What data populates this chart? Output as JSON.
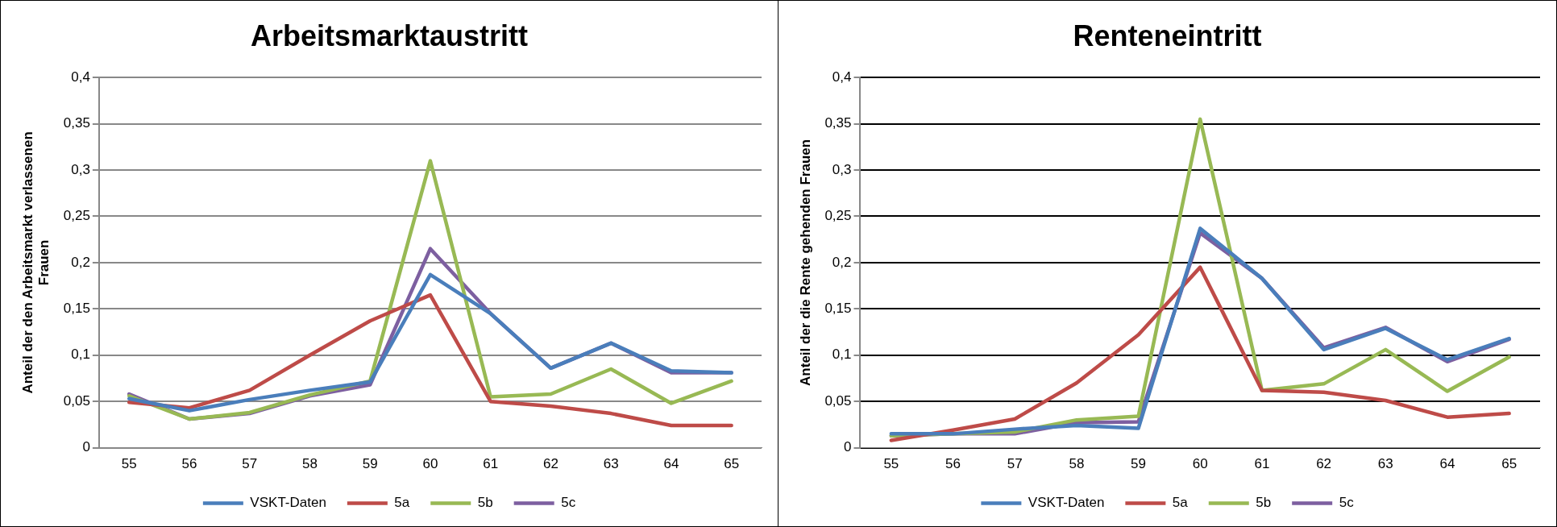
{
  "chart_data": [
    {
      "type": "line",
      "title": "Arbeitsmarktaustritt",
      "ylabel": "Anteil der den Arbeitsmarkt verlassenen Frauen",
      "categories": [
        "55",
        "56",
        "57",
        "58",
        "59",
        "60",
        "61",
        "62",
        "63",
        "64",
        "65"
      ],
      "series": [
        {
          "name": "VSKT-Daten",
          "color": "#4a7ebb",
          "values": [
            0.053,
            0.04,
            0.052,
            0.062,
            0.071,
            0.187,
            0.145,
            0.086,
            0.113,
            0.083,
            0.081
          ]
        },
        {
          "name": "5a",
          "color": "#be4b48",
          "values": [
            0.049,
            0.043,
            0.062,
            0.1,
            0.137,
            0.165,
            0.05,
            0.045,
            0.037,
            0.024,
            0.024
          ]
        },
        {
          "name": "5b",
          "color": "#98b954",
          "values": [
            0.056,
            0.031,
            0.038,
            0.057,
            0.072,
            0.31,
            0.055,
            0.058,
            0.085,
            0.048,
            0.072
          ]
        },
        {
          "name": "5c",
          "color": "#7d5fa0",
          "values": [
            0.058,
            0.031,
            0.037,
            0.056,
            0.068,
            0.215,
            0.145,
            0.086,
            0.113,
            0.081,
            0.081
          ]
        }
      ],
      "ylim": [
        0,
        0.4
      ],
      "yticks": [
        0,
        {
          "value": 0.05,
          "label": "0,05"
        },
        {
          "value": 0.1,
          "label": "0,1"
        },
        {
          "value": 0.15,
          "label": "0,15"
        },
        {
          "value": 0.2,
          "label": "0,2"
        },
        {
          "value": 0.25,
          "label": "0,25"
        },
        {
          "value": 0.3,
          "label": "0,3"
        },
        {
          "value": 0.35,
          "label": "0,35"
        },
        {
          "value": 0.4,
          "label": "0,4"
        }
      ],
      "grid": "y",
      "legend": "bottom",
      "marker": "none",
      "line_style": "solid"
    },
    {
      "type": "line",
      "title": "Renteneintritt",
      "ylabel": "Anteil der die Rente gehenden Frauen",
      "categories": [
        "55",
        "56",
        "57",
        "58",
        "59",
        "60",
        "61",
        "62",
        "63",
        "64",
        "65"
      ],
      "series": [
        {
          "name": "VSKT-Daten",
          "color": "#4a7ebb",
          "values": [
            0.015,
            0.015,
            0.02,
            0.024,
            0.021,
            0.237,
            0.183,
            0.106,
            0.129,
            0.095,
            0.118
          ]
        },
        {
          "name": "5a",
          "color": "#be4b48",
          "values": [
            0.008,
            0.019,
            0.031,
            0.07,
            0.122,
            0.195,
            0.062,
            0.06,
            0.051,
            0.033,
            0.037
          ]
        },
        {
          "name": "5b",
          "color": "#98b954",
          "values": [
            0.013,
            0.015,
            0.017,
            0.03,
            0.034,
            0.355,
            0.062,
            0.069,
            0.106,
            0.061,
            0.098
          ]
        },
        {
          "name": "5c",
          "color": "#7d5fa0",
          "values": [
            0.013,
            0.015,
            0.015,
            0.027,
            0.028,
            0.232,
            0.183,
            0.108,
            0.13,
            0.093,
            0.117
          ]
        }
      ],
      "ylim": [
        0,
        0.4
      ],
      "yticks": [
        0,
        {
          "value": 0.05,
          "label": "0,05"
        },
        {
          "value": 0.1,
          "label": "0,1"
        },
        {
          "value": 0.15,
          "label": "0,15"
        },
        {
          "value": 0.2,
          "label": "0,2"
        },
        {
          "value": 0.25,
          "label": "0,25"
        },
        {
          "value": 0.3,
          "label": "0,3"
        },
        {
          "value": 0.35,
          "label": "0,35"
        },
        {
          "value": 0.4,
          "label": "0,4"
        }
      ],
      "grid": "y",
      "legend": "bottom",
      "marker": "none",
      "line_style": "solid"
    }
  ]
}
